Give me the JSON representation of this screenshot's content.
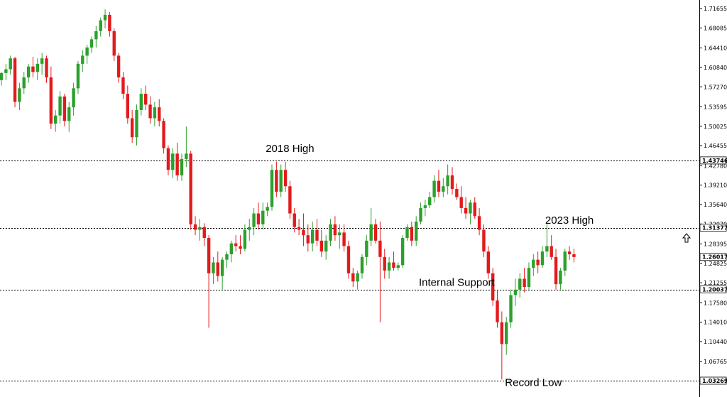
{
  "chart_data": {
    "type": "candlestick",
    "colors": {
      "up": "#2ca02c",
      "down": "#e31a1c",
      "axis": "#000000",
      "level_line": "#000000",
      "arrow": "#000000"
    },
    "ylim": [
      1.0327,
      1.7166
    ],
    "y_ticks": [
      "1.71655",
      "1.68085",
      "1.64410",
      "1.60840",
      "1.57270",
      "1.53595",
      "1.50025",
      "1.46455",
      "1.42780",
      "1.39210",
      "1.35640",
      "1.32070",
      "1.28395",
      "1.24825",
      "1.21255",
      "1.17580",
      "1.14010",
      "1.10440",
      "1.06765"
    ],
    "levels": [
      {
        "value": 1.43746,
        "label": "1.43746"
      },
      {
        "value": 1.31377,
        "label": "1.31377"
      },
      {
        "value": 1.20037,
        "label": "1.20037"
      },
      {
        "value": 1.03269,
        "label": "1.03269"
      }
    ],
    "current_price": {
      "value": 1.26017,
      "label": "1.26017"
    },
    "annotations": [
      {
        "text": "2018 High",
        "x_index": 64,
        "price": 1.453
      },
      {
        "text": "2023 High",
        "x_index": 126,
        "price": 1.321
      },
      {
        "text": "Internal Support",
        "x_index": 101,
        "price": 1.207
      },
      {
        "text": "Record Low",
        "x_index": 118,
        "price": 1.023
      }
    ],
    "candles": [
      [
        1.585,
        1.6,
        1.575,
        1.598
      ],
      [
        1.598,
        1.615,
        1.585,
        1.605
      ],
      [
        1.605,
        1.63,
        1.595,
        1.625
      ],
      [
        1.625,
        1.628,
        1.535,
        1.545
      ],
      [
        1.545,
        1.58,
        1.53,
        1.57
      ],
      [
        1.57,
        1.6,
        1.56,
        1.59
      ],
      [
        1.59,
        1.615,
        1.58,
        1.61
      ],
      [
        1.61,
        1.628,
        1.59,
        1.6
      ],
      [
        1.6,
        1.625,
        1.585,
        1.615
      ],
      [
        1.615,
        1.635,
        1.595,
        1.625
      ],
      [
        1.625,
        1.63,
        1.58,
        1.59
      ],
      [
        1.59,
        1.61,
        1.495,
        1.505
      ],
      [
        1.505,
        1.53,
        1.49,
        1.52
      ],
      [
        1.52,
        1.565,
        1.505,
        1.555
      ],
      [
        1.555,
        1.56,
        1.5,
        1.51
      ],
      [
        1.51,
        1.545,
        1.49,
        1.535
      ],
      [
        1.535,
        1.58,
        1.52,
        1.57
      ],
      [
        1.57,
        1.62,
        1.56,
        1.615
      ],
      [
        1.615,
        1.64,
        1.6,
        1.63
      ],
      [
        1.63,
        1.65,
        1.615,
        1.645
      ],
      [
        1.645,
        1.665,
        1.635,
        1.66
      ],
      [
        1.66,
        1.685,
        1.645,
        1.675
      ],
      [
        1.675,
        1.7,
        1.665,
        1.695
      ],
      [
        1.695,
        1.715,
        1.68,
        1.705
      ],
      [
        1.705,
        1.71,
        1.665,
        1.675
      ],
      [
        1.675,
        1.68,
        1.62,
        1.63
      ],
      [
        1.63,
        1.635,
        1.58,
        1.59
      ],
      [
        1.59,
        1.6,
        1.55,
        1.56
      ],
      [
        1.56,
        1.575,
        1.505,
        1.515
      ],
      [
        1.515,
        1.53,
        1.47,
        1.48
      ],
      [
        1.48,
        1.54,
        1.465,
        1.53
      ],
      [
        1.53,
        1.57,
        1.52,
        1.56
      ],
      [
        1.56,
        1.575,
        1.53,
        1.54
      ],
      [
        1.54,
        1.555,
        1.505,
        1.515
      ],
      [
        1.515,
        1.545,
        1.5,
        1.535
      ],
      [
        1.535,
        1.55,
        1.5,
        1.51
      ],
      [
        1.51,
        1.515,
        1.45,
        1.46
      ],
      [
        1.46,
        1.465,
        1.41,
        1.42
      ],
      [
        1.42,
        1.46,
        1.405,
        1.45
      ],
      [
        1.45,
        1.47,
        1.4,
        1.41
      ],
      [
        1.41,
        1.45,
        1.4,
        1.44
      ],
      [
        1.44,
        1.5,
        1.425,
        1.45
      ],
      [
        1.45,
        1.455,
        1.31,
        1.32
      ],
      [
        1.32,
        1.335,
        1.3,
        1.31
      ],
      [
        1.31,
        1.33,
        1.29,
        1.315
      ],
      [
        1.315,
        1.322,
        1.28,
        1.295
      ],
      [
        1.295,
        1.3,
        1.13,
        1.23
      ],
      [
        1.23,
        1.26,
        1.21,
        1.25
      ],
      [
        1.25,
        1.27,
        1.215,
        1.225
      ],
      [
        1.225,
        1.26,
        1.2,
        1.255
      ],
      [
        1.255,
        1.27,
        1.24,
        1.265
      ],
      [
        1.265,
        1.29,
        1.25,
        1.285
      ],
      [
        1.285,
        1.3,
        1.27,
        1.28
      ],
      [
        1.28,
        1.3,
        1.265,
        1.275
      ],
      [
        1.275,
        1.32,
        1.27,
        1.31
      ],
      [
        1.31,
        1.33,
        1.29,
        1.315
      ],
      [
        1.315,
        1.35,
        1.3,
        1.34
      ],
      [
        1.34,
        1.36,
        1.31,
        1.32
      ],
      [
        1.32,
        1.36,
        1.31,
        1.345
      ],
      [
        1.345,
        1.36,
        1.335,
        1.352
      ],
      [
        1.352,
        1.43,
        1.345,
        1.42
      ],
      [
        1.42,
        1.435,
        1.37,
        1.38
      ],
      [
        1.38,
        1.43,
        1.37,
        1.42
      ],
      [
        1.42,
        1.435,
        1.38,
        1.39
      ],
      [
        1.39,
        1.4,
        1.33,
        1.34
      ],
      [
        1.34,
        1.35,
        1.305,
        1.315
      ],
      [
        1.315,
        1.33,
        1.3,
        1.31
      ],
      [
        1.31,
        1.34,
        1.28,
        1.3
      ],
      [
        1.3,
        1.32,
        1.27,
        1.285
      ],
      [
        1.285,
        1.325,
        1.27,
        1.31
      ],
      [
        1.31,
        1.33,
        1.28,
        1.29
      ],
      [
        1.29,
        1.31,
        1.26,
        1.27
      ],
      [
        1.27,
        1.3,
        1.255,
        1.29
      ],
      [
        1.29,
        1.33,
        1.28,
        1.32
      ],
      [
        1.32,
        1.335,
        1.29,
        1.3
      ],
      [
        1.3,
        1.32,
        1.275,
        1.305
      ],
      [
        1.305,
        1.32,
        1.27,
        1.28
      ],
      [
        1.28,
        1.29,
        1.22,
        1.23
      ],
      [
        1.23,
        1.24,
        1.205,
        1.215
      ],
      [
        1.215,
        1.235,
        1.2,
        1.23
      ],
      [
        1.23,
        1.265,
        1.22,
        1.26
      ],
      [
        1.26,
        1.3,
        1.245,
        1.29
      ],
      [
        1.29,
        1.35,
        1.28,
        1.32
      ],
      [
        1.32,
        1.33,
        1.285,
        1.29
      ],
      [
        1.29,
        1.325,
        1.14,
        1.26
      ],
      [
        1.26,
        1.275,
        1.22,
        1.235
      ],
      [
        1.235,
        1.26,
        1.22,
        1.25
      ],
      [
        1.25,
        1.27,
        1.235,
        1.24
      ],
      [
        1.24,
        1.25,
        1.235,
        1.245
      ],
      [
        1.245,
        1.3,
        1.24,
        1.295
      ],
      [
        1.295,
        1.32,
        1.29,
        1.315
      ],
      [
        1.315,
        1.325,
        1.28,
        1.29
      ],
      [
        1.29,
        1.335,
        1.28,
        1.325
      ],
      [
        1.325,
        1.36,
        1.32,
        1.35
      ],
      [
        1.35,
        1.365,
        1.335,
        1.355
      ],
      [
        1.355,
        1.38,
        1.35,
        1.37
      ],
      [
        1.37,
        1.41,
        1.36,
        1.4
      ],
      [
        1.4,
        1.42,
        1.37,
        1.38
      ],
      [
        1.38,
        1.405,
        1.37,
        1.39
      ],
      [
        1.39,
        1.43,
        1.375,
        1.41
      ],
      [
        1.41,
        1.425,
        1.375,
        1.385
      ],
      [
        1.385,
        1.395,
        1.365,
        1.37
      ],
      [
        1.37,
        1.39,
        1.34,
        1.35
      ],
      [
        1.35,
        1.37,
        1.33,
        1.34
      ],
      [
        1.34,
        1.365,
        1.32,
        1.36
      ],
      [
        1.36,
        1.37,
        1.33,
        1.335
      ],
      [
        1.335,
        1.35,
        1.3,
        1.31
      ],
      [
        1.31,
        1.32,
        1.26,
        1.27
      ],
      [
        1.27,
        1.28,
        1.22,
        1.23
      ],
      [
        1.23,
        1.24,
        1.17,
        1.18
      ],
      [
        1.18,
        1.2,
        1.13,
        1.14
      ],
      [
        1.14,
        1.16,
        1.035,
        1.1
      ],
      [
        1.1,
        1.15,
        1.08,
        1.14
      ],
      [
        1.14,
        1.2,
        1.13,
        1.19
      ],
      [
        1.19,
        1.22,
        1.17,
        1.2
      ],
      [
        1.2,
        1.23,
        1.185,
        1.22
      ],
      [
        1.22,
        1.24,
        1.195,
        1.205
      ],
      [
        1.205,
        1.25,
        1.2,
        1.24
      ],
      [
        1.24,
        1.265,
        1.225,
        1.255
      ],
      [
        1.255,
        1.27,
        1.23,
        1.245
      ],
      [
        1.245,
        1.28,
        1.24,
        1.27
      ],
      [
        1.27,
        1.32,
        1.26,
        1.28
      ],
      [
        1.28,
        1.3,
        1.255,
        1.26
      ],
      [
        1.26,
        1.275,
        1.2,
        1.21
      ],
      [
        1.21,
        1.24,
        1.2,
        1.235
      ],
      [
        1.235,
        1.275,
        1.225,
        1.27
      ],
      [
        1.27,
        1.28,
        1.255,
        1.265
      ],
      [
        1.265,
        1.275,
        1.25,
        1.26
      ]
    ]
  }
}
